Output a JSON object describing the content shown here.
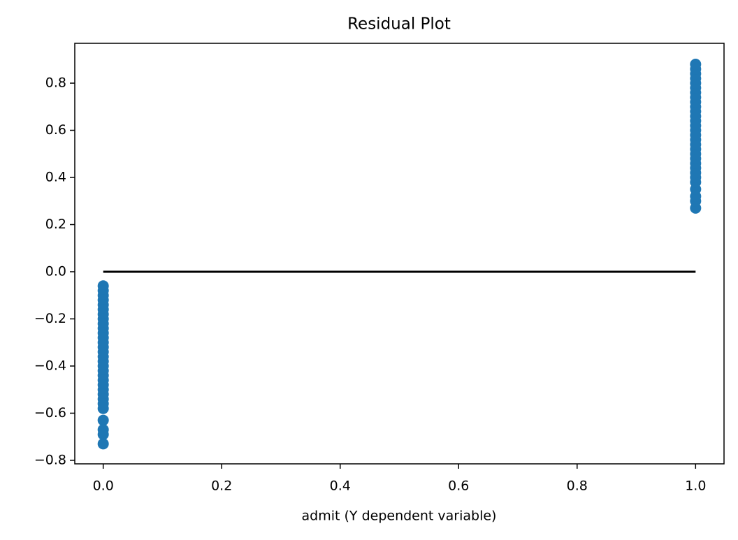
{
  "chart_data": {
    "type": "scatter",
    "title": "Residual Plot",
    "x_label": "admit (Y dependent variable)",
    "xlim": [
      -0.048,
      1.048
    ],
    "ylim": [
      -0.815,
      0.969
    ],
    "xticks": [
      {
        "value": 0,
        "label": "0.0"
      },
      {
        "value": 0.2,
        "label": "0.2"
      },
      {
        "value": 0.4,
        "label": "0.4"
      },
      {
        "value": 0.6,
        "label": "0.6"
      },
      {
        "value": 0.8,
        "label": "0.8"
      },
      {
        "value": 1,
        "label": "1.0"
      }
    ],
    "yticks": [
      {
        "value": -0.8,
        "label": "−0.8"
      },
      {
        "value": -0.6,
        "label": "−0.6"
      },
      {
        "value": -0.4,
        "label": "−0.4"
      },
      {
        "value": -0.2,
        "label": "−0.2"
      },
      {
        "value": 0,
        "label": "0.0"
      },
      {
        "value": 0.2,
        "label": "0.2"
      },
      {
        "value": 0.4,
        "label": "0.4"
      },
      {
        "value": 0.6,
        "label": "0.6"
      },
      {
        "value": 0.8,
        "label": "0.8"
      }
    ],
    "series": [
      {
        "color": "#1f77b4",
        "x": [
          0,
          0,
          0,
          0,
          0,
          0,
          0,
          0,
          0,
          0,
          0,
          0,
          0,
          0,
          0,
          0,
          0,
          0,
          0,
          0,
          0,
          0,
          0,
          0,
          0,
          0,
          0,
          0,
          0,
          0,
          0,
          1,
          1,
          1,
          1,
          1,
          1,
          1,
          1,
          1,
          1,
          1,
          1,
          1,
          1,
          1,
          1,
          1,
          1,
          1,
          1,
          1,
          1,
          1,
          1,
          1,
          1,
          1,
          1,
          1,
          1
        ],
        "values": [
          -0.06,
          -0.08,
          -0.1,
          -0.12,
          -0.14,
          -0.16,
          -0.18,
          -0.2,
          -0.22,
          -0.24,
          -0.26,
          -0.28,
          -0.3,
          -0.32,
          -0.34,
          -0.36,
          -0.38,
          -0.4,
          -0.42,
          -0.44,
          -0.46,
          -0.48,
          -0.5,
          -0.52,
          -0.54,
          -0.56,
          -0.58,
          -0.63,
          -0.67,
          -0.69,
          -0.73,
          0.27,
          0.3,
          0.32,
          0.35,
          0.38,
          0.4,
          0.42,
          0.44,
          0.46,
          0.48,
          0.5,
          0.52,
          0.54,
          0.56,
          0.58,
          0.6,
          0.62,
          0.64,
          0.66,
          0.68,
          0.7,
          0.72,
          0.74,
          0.76,
          0.78,
          0.8,
          0.82,
          0.84,
          0.86,
          0.88
        ]
      }
    ],
    "lines": [
      {
        "color": "#000000",
        "x": [
          0,
          1
        ],
        "values": [
          0,
          0
        ]
      }
    ]
  }
}
